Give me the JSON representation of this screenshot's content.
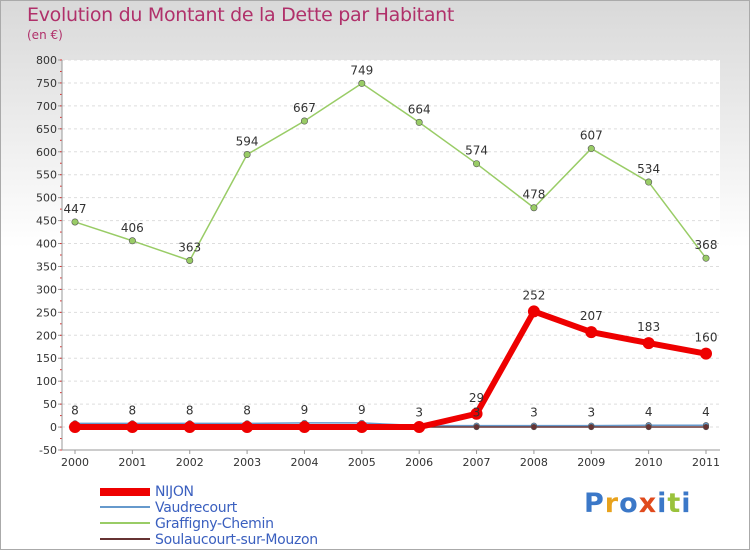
{
  "chart_data": {
    "type": "line",
    "title": "Evolution du Montant de la Dette par Habitant",
    "subtitle": "(en €)",
    "xlabel": "",
    "ylabel": "",
    "ylim": [
      -50,
      800
    ],
    "yticks": [
      -50,
      0,
      50,
      100,
      150,
      200,
      250,
      300,
      350,
      400,
      450,
      500,
      550,
      600,
      650,
      700,
      750,
      800
    ],
    "categories": [
      "2000",
      "2001",
      "2002",
      "2003",
      "2004",
      "2005",
      "2006",
      "2007",
      "2008",
      "2009",
      "2010",
      "2011"
    ],
    "series": [
      {
        "name": "Graffigny-Chemin",
        "color": "#99cc66",
        "values": [
          447,
          406,
          363,
          594,
          667,
          749,
          664,
          574,
          478,
          607,
          534,
          368
        ]
      },
      {
        "name": "Vaudrecourt",
        "color": "#6699cc",
        "values": [
          8,
          8,
          8,
          8,
          9,
          9,
          3,
          3,
          3,
          3,
          4,
          4
        ]
      },
      {
        "name": "Soulaucourt-sur-Mouzon",
        "color": "#663333",
        "values": [
          3,
          0,
          0,
          0,
          0,
          0,
          0,
          0,
          0,
          0,
          0,
          0
        ]
      },
      {
        "name": "NIJON",
        "color": "#ee0000",
        "values": [
          0,
          0,
          0,
          0,
          0,
          0,
          0,
          29,
          252,
          207,
          183,
          160
        ]
      }
    ],
    "legend": [
      "NIJON",
      "Vaudrecourt",
      "Graffigny-Chemin",
      "Soulaucourt-sur-Mouzon"
    ],
    "legend_position": "bottom-left"
  },
  "logo": {
    "text": "Proxiti",
    "letters": [
      "P",
      "r",
      "o",
      "x",
      "i",
      "t",
      "i"
    ],
    "letter_colors": [
      "#3b78c8",
      "#e8a21c",
      "#3b78c8",
      "#e04a1c",
      "#3b78c8",
      "#9ac23c",
      "#3b78c8"
    ]
  }
}
